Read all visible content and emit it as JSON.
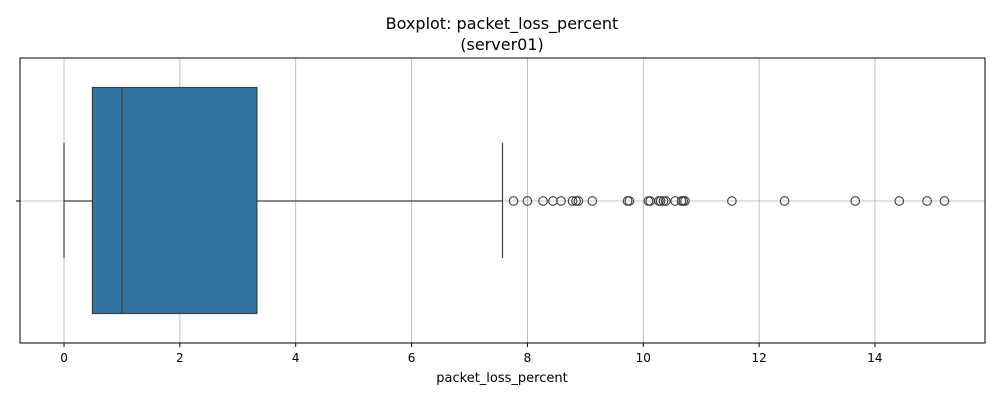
{
  "chart_data": {
    "type": "boxplot",
    "title": "Boxplot: packet_loss_percent",
    "subtitle": "(server01)",
    "xlabel": "packet_loss_percent",
    "ylabel": "",
    "orientation": "horizontal",
    "xlim": [
      -0.76,
      15.9
    ],
    "x_ticks": [
      0,
      2,
      4,
      6,
      8,
      10,
      12,
      14
    ],
    "x_tick_labels": [
      "0",
      "2",
      "4",
      "6",
      "8",
      "10",
      "12",
      "14"
    ],
    "grid": true,
    "box": {
      "whisker_low": 0.0,
      "q1": 0.49,
      "median": 1.0,
      "q3": 3.33,
      "whisker_high": 7.57,
      "outliers": [
        7.76,
        8.0,
        8.27,
        8.44,
        8.58,
        8.78,
        8.84,
        8.88,
        9.12,
        9.73,
        9.76,
        10.09,
        10.12,
        10.27,
        10.3,
        10.35,
        10.39,
        10.55,
        10.66,
        10.69,
        10.72,
        11.53,
        12.44,
        13.66,
        14.42,
        14.9,
        15.2
      ]
    },
    "colors": {
      "box_fill": "#3274a1",
      "box_edge": "#3d3d3d",
      "grid": "#b0b0b0",
      "axes": "#000000"
    }
  }
}
